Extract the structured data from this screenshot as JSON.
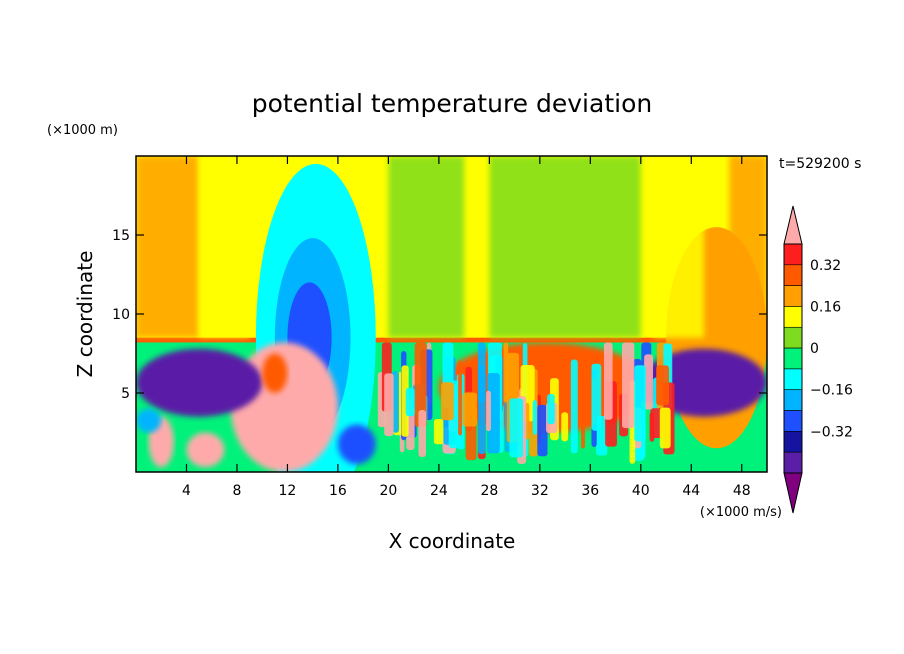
{
  "chart_data": {
    "type": "heatmap",
    "title": "potential temperature deviation",
    "xlabel": "X coordinate",
    "ylabel": "Z coordinate",
    "x_unit": "(×1000 m/s)",
    "y_unit": "(×1000 m)",
    "time_label": "t=529200 s",
    "xlim": [
      0,
      50
    ],
    "ylim": [
      0,
      20
    ],
    "x_ticks": [
      4,
      8,
      12,
      16,
      20,
      24,
      28,
      32,
      36,
      40,
      44,
      48
    ],
    "y_ticks": [
      5,
      10,
      15
    ],
    "colorbar": {
      "levels": [
        -0.48,
        -0.4,
        -0.32,
        -0.24,
        -0.16,
        -0.08,
        0,
        0.08,
        0.16,
        0.24,
        0.32,
        0.4
      ],
      "tick_labels": [
        "0.32",
        "0.16",
        "0",
        "−0.16",
        "−0.32"
      ],
      "tick_values": [
        0.32,
        0.16,
        0,
        -0.16,
        -0.32
      ],
      "colors": [
        "#800080",
        "#5a1fa6",
        "#1414a0",
        "#1e50ff",
        "#00b4ff",
        "#00ffff",
        "#00f27a",
        "#7ddc1e",
        "#ffff00",
        "#ffa000",
        "#ff5a00",
        "#ff1e1e",
        "#ffaaaa"
      ],
      "extend": "both"
    },
    "field_regions": [
      {
        "name": "upper-background",
        "x": [
          0,
          50
        ],
        "z": [
          8.3,
          20
        ],
        "value": 0.08
      },
      {
        "name": "lower-background",
        "x": [
          0,
          50
        ],
        "z": [
          0,
          8.3
        ],
        "value": -0.08
      },
      {
        "name": "tropopause-line",
        "x": [
          0,
          50
        ],
        "z": [
          8.2,
          8.5
        ],
        "value": 0.24
      },
      {
        "name": "cold-core-outer",
        "x": [
          9.5,
          19
        ],
        "z": [
          8.5,
          19.5
        ],
        "value": -0.16
      },
      {
        "name": "cold-core-mid",
        "x": [
          11,
          17
        ],
        "z": [
          8.5,
          14.8
        ],
        "value": -0.24
      },
      {
        "name": "cold-core-inner",
        "x": [
          12,
          15.5
        ],
        "z": [
          8.5,
          12
        ],
        "value": -0.32
      },
      {
        "name": "upper-right-warm",
        "x": [
          42,
          50
        ],
        "z": [
          8.5,
          15.5
        ],
        "value": 0.16
      },
      {
        "name": "plume-left",
        "x": [
          7.5,
          16
        ],
        "z": [
          0,
          8.2
        ],
        "value": 0.4
      },
      {
        "name": "convection-right",
        "x": [
          24,
          41
        ],
        "z": [
          2.5,
          8.2
        ],
        "value": 0.24
      },
      {
        "name": "low-left-cold",
        "x": [
          0,
          10
        ],
        "z": [
          3.5,
          7.8
        ],
        "value": -0.48
      },
      {
        "name": "low-right-cold",
        "x": [
          40,
          50
        ],
        "z": [
          3.5,
          7.8
        ],
        "value": -0.48
      }
    ]
  }
}
